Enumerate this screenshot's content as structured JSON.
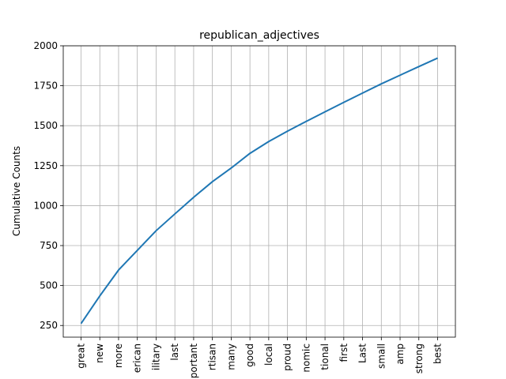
{
  "chart_data": {
    "type": "line",
    "title": "republican_adjectives",
    "xlabel": "",
    "ylabel": "Cumulative Counts",
    "categories": [
      "great",
      "new",
      "more",
      "erican",
      "ilitary",
      "last",
      "portant",
      "rtisan",
      "many",
      "good",
      "local",
      "proud",
      "nomic",
      "tional",
      "first",
      "Last",
      "small",
      "amp",
      "strong",
      "best"
    ],
    "series": [
      {
        "values": [
          262,
          435,
          597,
          720,
          843,
          948,
          1052,
          1150,
          1235,
          1327,
          1401,
          1466,
          1527,
          1587,
          1646,
          1704,
          1762,
          1816,
          1870,
          1923
        ]
      }
    ],
    "yticks": [
      250,
      500,
      750,
      1000,
      1250,
      1500,
      1750,
      2000
    ],
    "ylim": [
      177,
      2000
    ],
    "grid": true,
    "colors": {
      "series": "#1f77b4"
    }
  }
}
